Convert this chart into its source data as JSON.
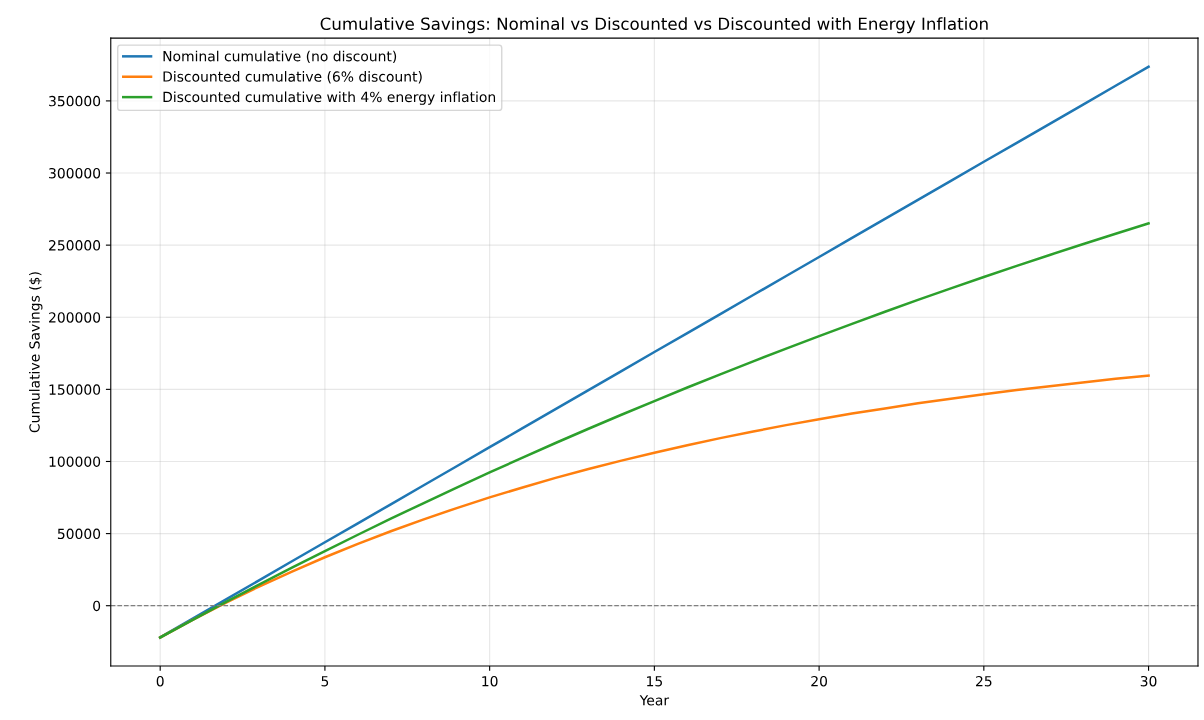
{
  "chart_data": {
    "type": "line",
    "title": "Cumulative Savings: Nominal vs Discounted vs Discounted with Energy Inflation",
    "xlabel": "Year",
    "ylabel": "Cumulative Savings ($)",
    "x": [
      0,
      1,
      2,
      3,
      4,
      5,
      6,
      7,
      8,
      9,
      10,
      11,
      12,
      13,
      14,
      15,
      16,
      17,
      18,
      19,
      20,
      21,
      22,
      23,
      24,
      25,
      26,
      27,
      28,
      29,
      30
    ],
    "series": [
      {
        "name": "Nominal cumulative (no discount)",
        "color": "#1f77b4",
        "values": [
          -22000,
          -8800,
          4400,
          17600,
          30800,
          44000,
          57100,
          70300,
          83500,
          96700,
          109900,
          123100,
          136300,
          149500,
          162700,
          175900,
          189000,
          202200,
          215400,
          228600,
          241800,
          255000,
          268200,
          281400,
          294600,
          307800,
          320900,
          334100,
          347300,
          360500,
          373700
        ]
      },
      {
        "name": "Discounted cumulative (6% discount)",
        "color": "#ff7f0e",
        "values": [
          -22000,
          -9600,
          2200,
          13300,
          23700,
          33600,
          42900,
          51600,
          59900,
          67700,
          75100,
          82000,
          88600,
          94800,
          100600,
          106100,
          111300,
          116200,
          120800,
          125200,
          129300,
          133200,
          136800,
          140300,
          143500,
          146600,
          149500,
          152200,
          154800,
          157300,
          159600
        ]
      },
      {
        "name": "Discounted cumulative with 4% energy inflation",
        "color": "#2ca02c",
        "values": [
          -22000,
          -9600,
          2700,
          14600,
          26400,
          37900,
          49200,
          60300,
          71200,
          81900,
          92400,
          102700,
          112800,
          122700,
          132400,
          141900,
          151300,
          160400,
          169400,
          178300,
          186900,
          195400,
          203800,
          212000,
          220000,
          227900,
          235600,
          243200,
          250600,
          257900,
          265100
        ]
      }
    ],
    "xlim": [
      -1.5,
      31.5
    ],
    "ylim": [
      -41800,
      393500
    ],
    "xticks": [
      0,
      5,
      10,
      15,
      20,
      25,
      30
    ],
    "yticks": [
      0,
      50000,
      100000,
      150000,
      200000,
      250000,
      300000,
      350000
    ],
    "ref_lines": [
      {
        "axis": "y",
        "value": 0,
        "color": "#808080",
        "line_style": "dashed"
      }
    ],
    "grid": true,
    "legend": "top left",
    "marker": "none",
    "line_style": "solid"
  }
}
